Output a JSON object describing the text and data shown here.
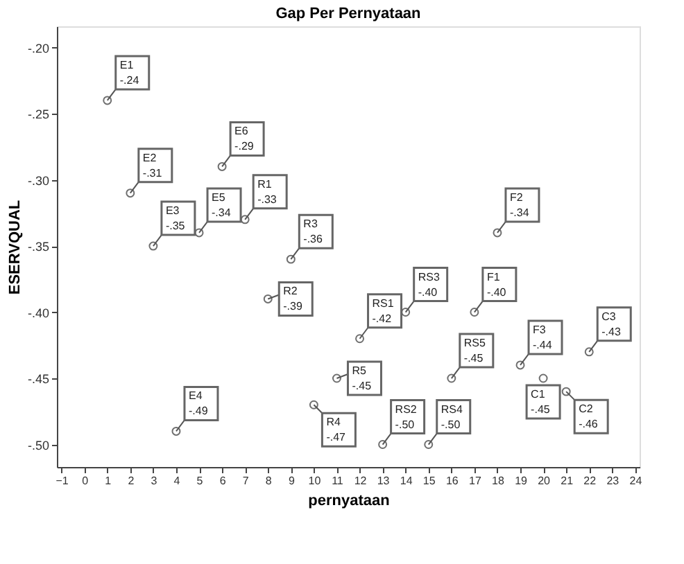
{
  "chart_data": {
    "type": "scatter",
    "title": "Gap Per Pernyataan",
    "xlabel": "pernyataan",
    "ylabel": "ESERVQUAL",
    "x": [
      1,
      2,
      3,
      4,
      5,
      6,
      7,
      8,
      9,
      10,
      11,
      12,
      13,
      14,
      15,
      16,
      17,
      18,
      19,
      20,
      21,
      22
    ],
    "values": [
      -0.24,
      -0.31,
      -0.35,
      -0.49,
      -0.34,
      -0.29,
      -0.33,
      -0.39,
      -0.36,
      -0.47,
      -0.45,
      -0.42,
      -0.5,
      -0.4,
      -0.5,
      -0.45,
      -0.4,
      -0.34,
      -0.44,
      -0.45,
      -0.46,
      -0.43
    ],
    "value_labels": [
      "-.24",
      "-.31",
      "-.35",
      "-.49",
      "-.34",
      "-.29",
      "-.33",
      "-.39",
      "-.36",
      "-.47",
      "-.45",
      "-.42",
      "-.50",
      "-.40",
      "-.50",
      "-.45",
      "-.40",
      "-.34",
      "-.44",
      "-.45",
      "-.46",
      "-.43"
    ],
    "annotations": [
      {
        "text": "E1",
        "x": 1,
        "y": -0.24
      },
      {
        "text": "E2",
        "x": 2,
        "y": -0.31
      },
      {
        "text": "E3",
        "x": 3,
        "y": -0.35
      },
      {
        "text": "E4",
        "x": 4,
        "y": -0.49
      },
      {
        "text": "E5",
        "x": 5,
        "y": -0.34
      },
      {
        "text": "E6",
        "x": 6,
        "y": -0.29
      },
      {
        "text": "R1",
        "x": 7,
        "y": -0.33
      },
      {
        "text": "R2",
        "x": 8,
        "y": -0.39
      },
      {
        "text": "R3",
        "x": 9,
        "y": -0.36
      },
      {
        "text": "R4",
        "x": 10,
        "y": -0.47
      },
      {
        "text": "R5",
        "x": 11,
        "y": -0.45
      },
      {
        "text": "RS1",
        "x": 12,
        "y": -0.42
      },
      {
        "text": "RS2",
        "x": 13,
        "y": -0.5
      },
      {
        "text": "RS3",
        "x": 14,
        "y": -0.4
      },
      {
        "text": "RS4",
        "x": 15,
        "y": -0.5
      },
      {
        "text": "RS5",
        "x": 16,
        "y": -0.45
      },
      {
        "text": "F1",
        "x": 17,
        "y": -0.4
      },
      {
        "text": "F2",
        "x": 18,
        "y": -0.34
      },
      {
        "text": "F3",
        "x": 19,
        "y": -0.44
      },
      {
        "text": "C1",
        "x": 20,
        "y": -0.45
      },
      {
        "text": "C2",
        "x": 21,
        "y": -0.46
      },
      {
        "text": "C3",
        "x": 22,
        "y": -0.43
      }
    ],
    "color": "#333333",
    "marker": "circle",
    "grid": false,
    "xlim": [
      -1.2,
      24.2
    ],
    "xticks": [
      -1,
      0,
      1,
      2,
      3,
      4,
      5,
      6,
      7,
      8,
      9,
      10,
      11,
      12,
      13,
      14,
      15,
      16,
      17,
      18,
      19,
      20,
      21,
      22,
      23,
      24
    ],
    "ylim": [
      -0.517,
      -0.184
    ],
    "yticks": [
      {
        "value": -0.2,
        "label": "-.20"
      },
      {
        "value": -0.25,
        "label": "-.25"
      },
      {
        "value": -0.3,
        "label": "-.30"
      },
      {
        "value": -0.35,
        "label": "-.35"
      },
      {
        "value": -0.4,
        "label": "-.40"
      },
      {
        "value": -0.45,
        "label": "-.45"
      },
      {
        "value": -0.5,
        "label": "-.50"
      }
    ]
  }
}
